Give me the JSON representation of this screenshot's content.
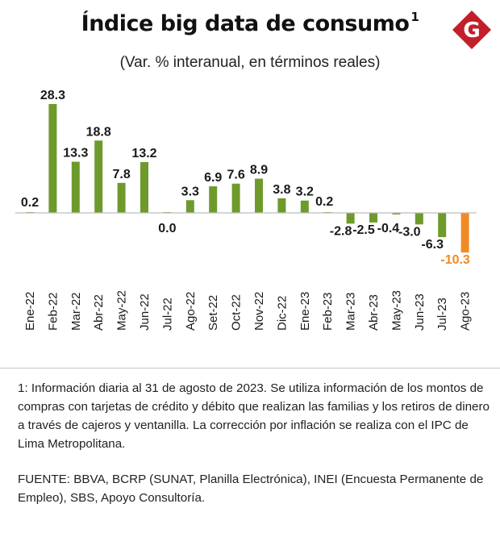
{
  "header": {
    "title": "Índice big data de consumo",
    "title_superscript": "1",
    "subtitle": "(Var. % interanual, en términos reales)",
    "logo_letter": "G"
  },
  "colors": {
    "bar_default": "#6e9a2c",
    "bar_highlight": "#f08a24",
    "label_highlight": "#f08a24",
    "logo": "#c21f2a"
  },
  "chart_data": {
    "type": "bar",
    "categories": [
      "Ene-22",
      "Feb-22",
      "Mar-22",
      "Abr-22",
      "May-22",
      "Jun-22",
      "Jul-22",
      "Ago-22",
      "Set-22",
      "Oct-22",
      "Nov-22",
      "Dic-22",
      "Ene-23",
      "Feb-23",
      "Mar-23",
      "Abr-23",
      "May-23",
      "Jun-23",
      "Jul-23",
      "Ago-23"
    ],
    "values": [
      0.2,
      28.3,
      13.3,
      18.8,
      7.8,
      13.2,
      0.0,
      3.3,
      6.9,
      7.6,
      8.9,
      3.8,
      3.2,
      0.2,
      -2.8,
      -2.5,
      -0.4,
      -3.0,
      -6.3,
      -10.3
    ],
    "value_labels": [
      "0.2",
      "28.3",
      "13.3",
      "18.8",
      "7.8",
      "13.2",
      "0.0",
      "3.3",
      "6.9",
      "7.6",
      "8.9",
      "3.8",
      "3.2",
      "0.2",
      "-2.8",
      "-2.5",
      "-0.4",
      "-3.0",
      "-6.3",
      "-10.3"
    ],
    "highlight_index": 19,
    "ylim": [
      -10.3,
      28.3
    ],
    "grid": false,
    "legend": "none"
  },
  "footer": {
    "note": "1: Información diaria al 31 de agosto de 2023. Se utiliza información de los montos de compras con tarjetas de crédito y débito que realizan las familias y los retiros de dinero a través de cajeros y ventanilla. La corrección por inflación se realiza con el IPC de Lima Metropolitana.",
    "source": "FUENTE: BBVA, BCRP (SUNAT, Planilla Electrónica), INEI (Encuesta Permanente de Empleo),  SBS, Apoyo Consultoría."
  }
}
